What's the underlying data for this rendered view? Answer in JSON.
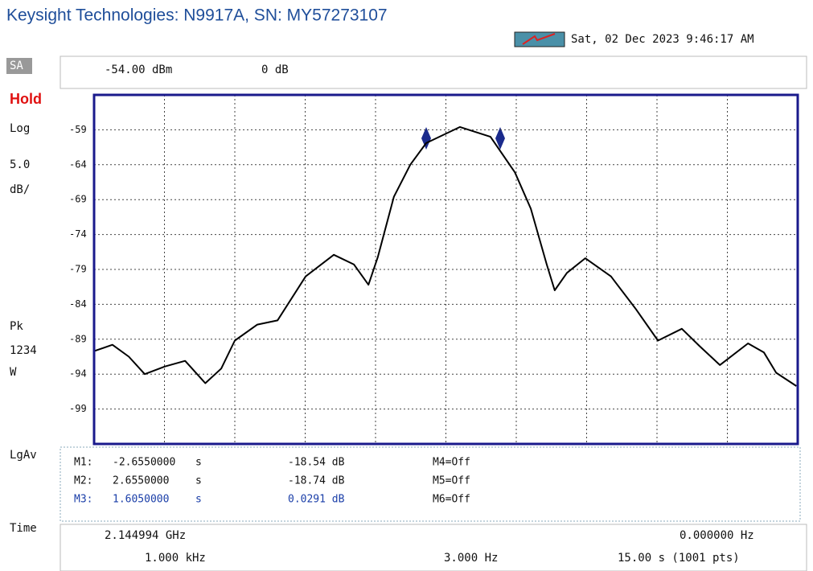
{
  "header": {
    "title": "Keysight Technologies: N9917A, SN: MY57273107",
    "datetime": "Sat, 02 Dec 2023 9:46:17 AM",
    "ref_level": "-54.00 dBm",
    "offset": "0 dB"
  },
  "side_labels": {
    "mode": "SA",
    "hold": "Hold",
    "scale_type": "Log",
    "scale": "5.0",
    "scale_unit": "dB/",
    "detector": "Pk",
    "traces": "1234",
    "trace_state": "W",
    "average": "LgAv",
    "sweep": "Time"
  },
  "marker_table": {
    "rows": [
      [
        "M1:",
        "-2.6550000",
        "s",
        "-18.54 dB",
        "M4=Off"
      ],
      [
        "M2:",
        "2.6550000",
        "s",
        "-18.74 dB",
        "M5=Off"
      ],
      [
        "M3:",
        "1.6050000",
        "s",
        "0.0291 dB",
        "M6=Off"
      ]
    ]
  },
  "footer": {
    "center_freq": "2.144994 GHz",
    "span": "0.000000 Hz",
    "rbw": "1.000 kHz",
    "vbw": "3.000 Hz",
    "sweep_time": "15.00 s (1001 pts)"
  },
  "chart_data": {
    "type": "line",
    "x": [
      0,
      0.39,
      0.74,
      1.08,
      1.51,
      1.94,
      2.37,
      2.71,
      3.0,
      3.48,
      3.91,
      4.51,
      5.11,
      5.54,
      5.85,
      6.05,
      6.39,
      6.74,
      7.08,
      7.8,
      8.45,
      8.97,
      9.31,
      9.65,
      9.82,
      10.08,
      10.47,
      11.02,
      11.54,
      12.02,
      12.53,
      12.91,
      13.34,
      13.94,
      14.28,
      14.54,
      14.97
    ],
    "series": [
      {
        "color": "#000000",
        "values": [
          -90.7,
          -89.8,
          -91.5,
          -94.0,
          -92.9,
          -92.1,
          -95.3,
          -93.2,
          -89.2,
          -86.9,
          -86.3,
          -80.0,
          -76.9,
          -78.3,
          -81.2,
          -77.2,
          -68.6,
          -64.0,
          -60.9,
          -58.6,
          -60.0,
          -65.1,
          -70.3,
          -78.3,
          -82.0,
          -79.5,
          -77.4,
          -80.0,
          -84.6,
          -89.2,
          -87.5,
          -90.0,
          -92.7,
          -89.6,
          -90.9,
          -93.8,
          -95.7
        ]
      }
    ],
    "xlim": [
      0,
      15
    ],
    "xticks": [
      1.5,
      3,
      4.5,
      6,
      7.5,
      9,
      10.5,
      12,
      13.5
    ],
    "ylim": [
      -104,
      -54
    ],
    "yticks": [
      -99,
      -94,
      -89,
      -84,
      -79,
      -74,
      -69,
      -64,
      -59
    ],
    "grid": true
  }
}
